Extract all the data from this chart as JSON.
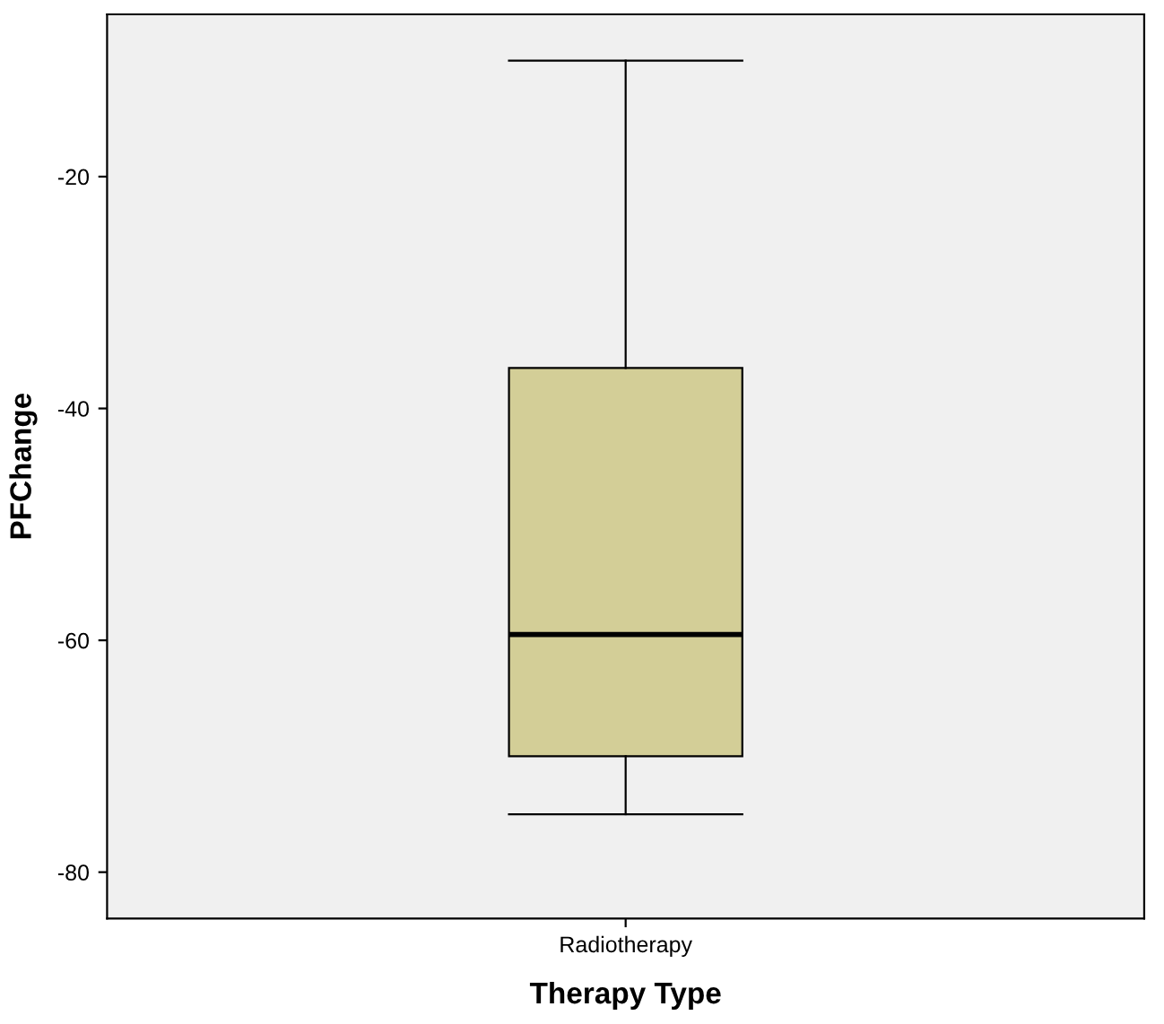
{
  "chart_data": {
    "type": "box",
    "xlabel": "Therapy Type",
    "ylabel": "PFChange",
    "categories": [
      "Radiotherapy"
    ],
    "boxes": [
      {
        "low": -75,
        "q1": -70,
        "median": -59.5,
        "q3": -36.5,
        "high": -10
      }
    ],
    "color": "#d3ce97",
    "ylim": [
      -84,
      -6
    ],
    "yticks": [
      -20,
      -40,
      -60,
      -80
    ],
    "grid": false
  }
}
